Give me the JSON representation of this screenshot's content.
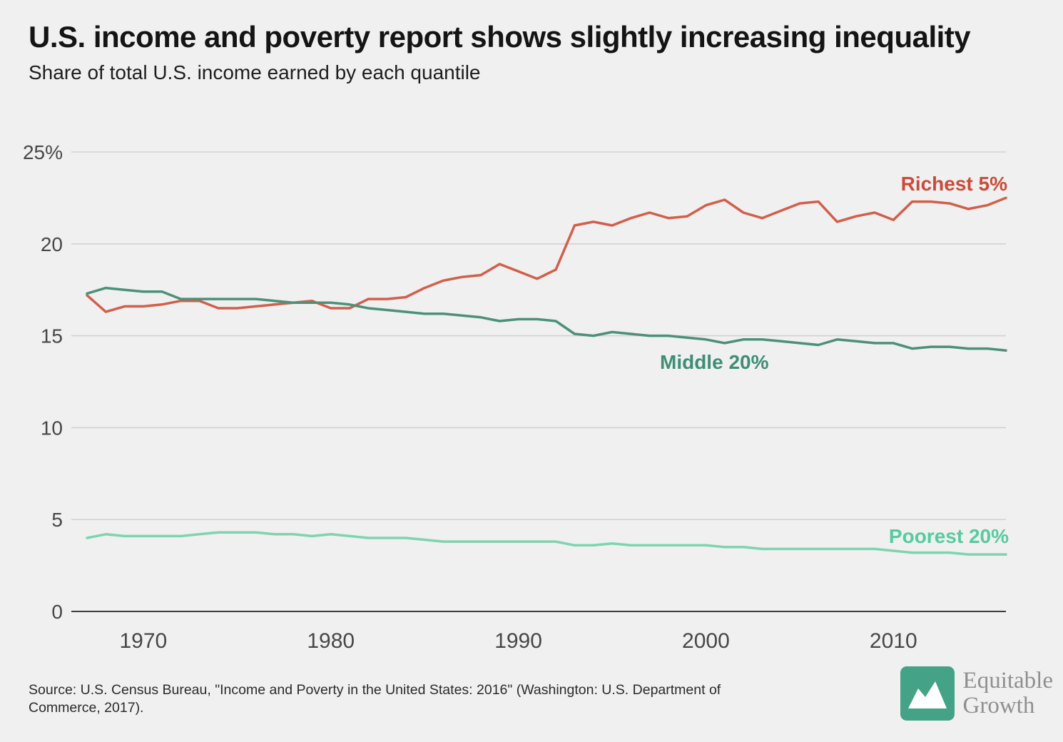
{
  "title": "U.S. income and poverty report shows slightly increasing inequality",
  "subtitle": "Share of total U.S. income earned by each quantile",
  "source": {
    "line1": "Source: U.S. Census Bureau, \"Income and Poverty in the United States: 2016\" (Washington: U.S. Department of",
    "line2": "Commerce, 2017)."
  },
  "logo": {
    "line1": "Equitable",
    "line2": "Growth",
    "icon": "mountain-chart-icon",
    "color": "#44a287"
  },
  "chart_data": {
    "type": "line",
    "title": "Share of total U.S. income earned by each quantile",
    "xlabel": "",
    "ylabel": "",
    "x_range": [
      1967,
      2016
    ],
    "ylim": [
      0,
      25
    ],
    "grid": "horizontal",
    "legend_position": "inline-labels",
    "yticks": [
      {
        "v": 0,
        "label": "0"
      },
      {
        "v": 5,
        "label": "5"
      },
      {
        "v": 10,
        "label": "10"
      },
      {
        "v": 15,
        "label": "15"
      },
      {
        "v": 20,
        "label": "20"
      },
      {
        "v": 25,
        "label": "25%"
      }
    ],
    "xticks": [
      {
        "v": 1970,
        "label": "1970"
      },
      {
        "v": 1980,
        "label": "1980"
      },
      {
        "v": 1990,
        "label": "1990"
      },
      {
        "v": 2000,
        "label": "2000"
      },
      {
        "v": 2010,
        "label": "2010"
      }
    ],
    "series": [
      {
        "id": "richest-5",
        "name": "Richest 5%",
        "color": "#d25f4a",
        "label_color": "#cc4b37",
        "values": [
          17.2,
          16.3,
          16.6,
          16.6,
          16.7,
          16.9,
          16.9,
          16.5,
          16.5,
          16.6,
          16.7,
          16.8,
          16.9,
          16.5,
          16.5,
          17.0,
          17.0,
          17.1,
          17.6,
          18.0,
          18.2,
          18.3,
          18.9,
          18.5,
          18.1,
          18.6,
          21.0,
          21.2,
          21.0,
          21.4,
          21.7,
          21.4,
          21.5,
          22.1,
          22.4,
          21.7,
          21.4,
          21.8,
          22.2,
          22.3,
          21.2,
          21.5,
          21.7,
          21.3,
          22.3,
          22.3,
          22.2,
          21.9,
          22.1,
          22.5
        ]
      },
      {
        "id": "middle-20",
        "name": "Middle 20%",
        "color": "#4b9179",
        "label_color": "#3e8e75",
        "values": [
          17.3,
          17.6,
          17.5,
          17.4,
          17.4,
          17.0,
          17.0,
          17.0,
          17.0,
          17.0,
          16.9,
          16.8,
          16.8,
          16.8,
          16.7,
          16.5,
          16.4,
          16.3,
          16.2,
          16.2,
          16.1,
          16.0,
          15.8,
          15.9,
          15.9,
          15.8,
          15.1,
          15.0,
          15.2,
          15.1,
          15.0,
          15.0,
          14.9,
          14.8,
          14.6,
          14.8,
          14.8,
          14.7,
          14.6,
          14.5,
          14.8,
          14.7,
          14.6,
          14.6,
          14.3,
          14.4,
          14.4,
          14.3,
          14.3,
          14.2
        ]
      },
      {
        "id": "poorest-20",
        "name": "Poorest 20%",
        "color": "#7ed4b0",
        "label_color": "#55cba0",
        "values": [
          4.0,
          4.2,
          4.1,
          4.1,
          4.1,
          4.1,
          4.2,
          4.3,
          4.3,
          4.3,
          4.2,
          4.2,
          4.1,
          4.2,
          4.1,
          4.0,
          4.0,
          4.0,
          3.9,
          3.8,
          3.8,
          3.8,
          3.8,
          3.8,
          3.8,
          3.8,
          3.6,
          3.6,
          3.7,
          3.6,
          3.6,
          3.6,
          3.6,
          3.6,
          3.5,
          3.5,
          3.4,
          3.4,
          3.4,
          3.4,
          3.4,
          3.4,
          3.4,
          3.3,
          3.2,
          3.2,
          3.2,
          3.1,
          3.1,
          3.1
        ]
      }
    ]
  }
}
